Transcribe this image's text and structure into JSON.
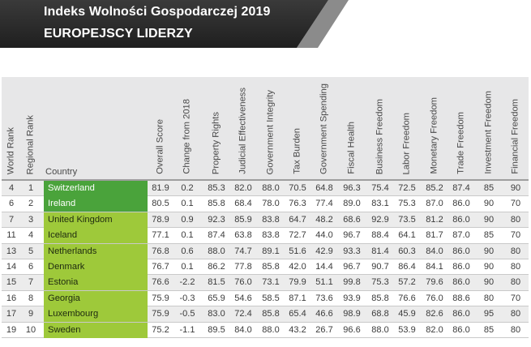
{
  "banner": {
    "title_line1": "Indeks Wolności Gospodarczej 2019",
    "title_line2": "EUROPEJSCY LIDERZY"
  },
  "colors": {
    "free": "#4aa33b",
    "mostly_free": "#9ec93a",
    "banner_dark": "#2b2b2b",
    "header_bg": "#e7e7e8"
  },
  "table": {
    "columns": [
      "World Rank",
      "Regional Rank",
      "Country",
      "Overall Score",
      "Change from 2018",
      "Property Rights",
      "Judicial Effectiveness",
      "Government Integrity",
      "Tax Burden",
      "Government Spending",
      "Fiscal Health",
      "Business Freedom",
      "Labor Freedom",
      "Monetary Freedom",
      "Trade Freedom",
      "Investment Freedom",
      "Financial Freedom"
    ],
    "rows": [
      {
        "world_rank": "4",
        "regional_rank": "1",
        "country": "Switzerland",
        "category": "free",
        "values": [
          "81.9",
          "0.2",
          "85.3",
          "82.0",
          "88.0",
          "70.5",
          "64.8",
          "96.3",
          "75.4",
          "72.5",
          "85.2",
          "87.4",
          "85",
          "90"
        ]
      },
      {
        "world_rank": "6",
        "regional_rank": "2",
        "country": "Ireland",
        "category": "free",
        "values": [
          "80.5",
          "0.1",
          "85.8",
          "68.4",
          "78.0",
          "76.3",
          "77.4",
          "89.0",
          "83.1",
          "75.3",
          "87.0",
          "86.0",
          "90",
          "70"
        ]
      },
      {
        "world_rank": "7",
        "regional_rank": "3",
        "country": "United Kingdom",
        "category": "mostly_free",
        "values": [
          "78.9",
          "0.9",
          "92.3",
          "85.9",
          "83.8",
          "64.7",
          "48.2",
          "68.6",
          "92.9",
          "73.5",
          "81.2",
          "86.0",
          "90",
          "80"
        ]
      },
      {
        "world_rank": "11",
        "regional_rank": "4",
        "country": "Iceland",
        "category": "mostly_free",
        "values": [
          "77.1",
          "0.1",
          "87.4",
          "63.8",
          "83.8",
          "72.7",
          "44.0",
          "96.7",
          "88.4",
          "64.1",
          "81.7",
          "87.0",
          "85",
          "70"
        ]
      },
      {
        "world_rank": "13",
        "regional_rank": "5",
        "country": "Netherlands",
        "category": "mostly_free",
        "values": [
          "76.8",
          "0.6",
          "88.0",
          "74.7",
          "89.1",
          "51.6",
          "42.9",
          "93.3",
          "81.4",
          "60.3",
          "84.0",
          "86.0",
          "90",
          "80"
        ]
      },
      {
        "world_rank": "14",
        "regional_rank": "6",
        "country": "Denmark",
        "category": "mostly_free",
        "values": [
          "76.7",
          "0.1",
          "86.2",
          "77.8",
          "85.8",
          "42.0",
          "14.4",
          "96.7",
          "90.7",
          "86.4",
          "84.1",
          "86.0",
          "90",
          "80"
        ]
      },
      {
        "world_rank": "15",
        "regional_rank": "7",
        "country": "Estonia",
        "category": "mostly_free",
        "values": [
          "76.6",
          "-2.2",
          "81.5",
          "76.0",
          "73.1",
          "79.9",
          "51.1",
          "99.8",
          "75.3",
          "57.2",
          "79.6",
          "86.0",
          "90",
          "80"
        ]
      },
      {
        "world_rank": "16",
        "regional_rank": "8",
        "country": "Georgia",
        "category": "mostly_free",
        "values": [
          "75.9",
          "-0.3",
          "65.9",
          "54.6",
          "58.5",
          "87.1",
          "73.6",
          "93.9",
          "85.8",
          "76.6",
          "76.0",
          "88.6",
          "80",
          "70"
        ]
      },
      {
        "world_rank": "17",
        "regional_rank": "9",
        "country": "Luxembourg",
        "category": "mostly_free",
        "values": [
          "75.9",
          "-0.5",
          "83.0",
          "72.4",
          "85.8",
          "65.4",
          "46.6",
          "98.9",
          "68.8",
          "45.9",
          "82.6",
          "86.0",
          "95",
          "80"
        ]
      },
      {
        "world_rank": "19",
        "regional_rank": "10",
        "country": "Sweden",
        "category": "mostly_free",
        "values": [
          "75.2",
          "-1.1",
          "89.5",
          "84.0",
          "88.0",
          "43.2",
          "26.7",
          "96.6",
          "88.0",
          "53.9",
          "82.0",
          "86.0",
          "85",
          "80"
        ]
      }
    ]
  }
}
